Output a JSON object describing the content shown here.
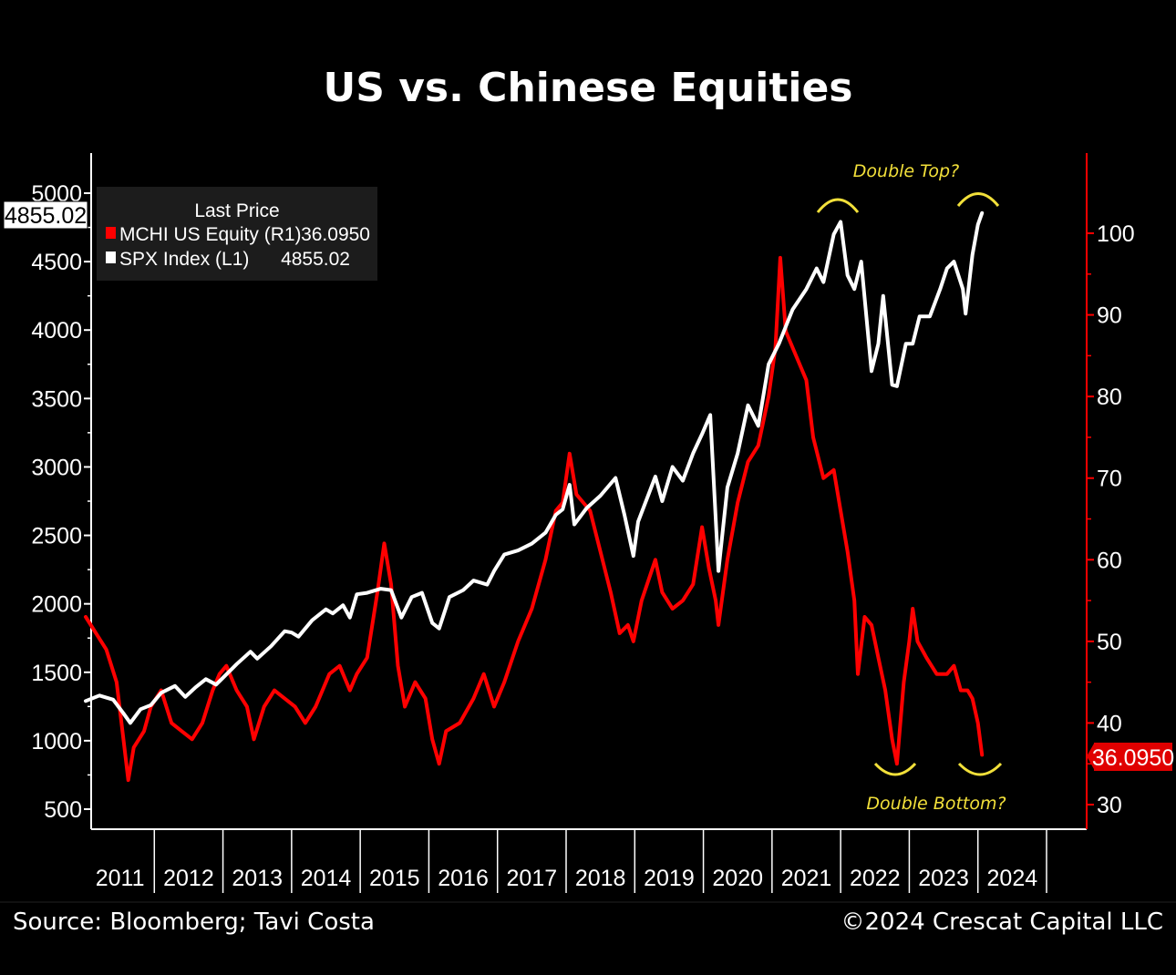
{
  "chart_data": {
    "type": "line",
    "title": "US vs. Chinese Equities",
    "legend": {
      "header": "Last Price",
      "placement": "top-left",
      "entries": [
        {
          "label": "MCHI US Equity  (R1)",
          "value": "36.0950",
          "color": "#ff0000"
        },
        {
          "label": "SPX Index  (L1)",
          "value": "4855.02",
          "color": "#ffffff"
        }
      ]
    },
    "left_axis": {
      "ticks": [
        "500",
        "1000",
        "1500",
        "2000",
        "2500",
        "3000",
        "3500",
        "4000",
        "4500",
        "5000"
      ],
      "range": [
        500,
        5000
      ],
      "last_value_label": "4855.02"
    },
    "right_axis": {
      "ticks": [
        "30",
        "40",
        "50",
        "60",
        "70",
        "80",
        "90",
        "100"
      ],
      "range": [
        30,
        100
      ],
      "last_value_label": "36.0950",
      "color": "#ff0000"
    },
    "x_axis": {
      "ticks": [
        "2011",
        "2012",
        "2013",
        "2014",
        "2015",
        "2016",
        "2017",
        "2018",
        "2019",
        "2020",
        "2021",
        "2022",
        "2023",
        "2024"
      ]
    },
    "series": [
      {
        "name": "SPX Index",
        "axis": "left",
        "color": "#ffffff",
        "points": [
          [
            2011.0,
            1290
          ],
          [
            2011.2,
            1330
          ],
          [
            2011.4,
            1300
          ],
          [
            2011.55,
            1200
          ],
          [
            2011.65,
            1130
          ],
          [
            2011.8,
            1230
          ],
          [
            2011.95,
            1260
          ],
          [
            2012.1,
            1350
          ],
          [
            2012.3,
            1400
          ],
          [
            2012.45,
            1320
          ],
          [
            2012.6,
            1390
          ],
          [
            2012.75,
            1450
          ],
          [
            2012.9,
            1410
          ],
          [
            2013.0,
            1460
          ],
          [
            2013.2,
            1560
          ],
          [
            2013.4,
            1650
          ],
          [
            2013.5,
            1600
          ],
          [
            2013.7,
            1690
          ],
          [
            2013.9,
            1800
          ],
          [
            2014.0,
            1790
          ],
          [
            2014.1,
            1760
          ],
          [
            2014.3,
            1880
          ],
          [
            2014.5,
            1960
          ],
          [
            2014.6,
            1930
          ],
          [
            2014.75,
            1990
          ],
          [
            2014.85,
            1900
          ],
          [
            2014.95,
            2070
          ],
          [
            2015.1,
            2080
          ],
          [
            2015.3,
            2110
          ],
          [
            2015.45,
            2100
          ],
          [
            2015.6,
            1900
          ],
          [
            2015.75,
            2050
          ],
          [
            2015.9,
            2080
          ],
          [
            2016.05,
            1860
          ],
          [
            2016.15,
            1820
          ],
          [
            2016.3,
            2050
          ],
          [
            2016.5,
            2100
          ],
          [
            2016.65,
            2170
          ],
          [
            2016.85,
            2140
          ],
          [
            2016.95,
            2240
          ],
          [
            2017.1,
            2360
          ],
          [
            2017.3,
            2390
          ],
          [
            2017.5,
            2440
          ],
          [
            2017.7,
            2520
          ],
          [
            2017.85,
            2650
          ],
          [
            2017.95,
            2690
          ],
          [
            2018.05,
            2870
          ],
          [
            2018.12,
            2580
          ],
          [
            2018.3,
            2700
          ],
          [
            2018.5,
            2790
          ],
          [
            2018.72,
            2920
          ],
          [
            2018.85,
            2650
          ],
          [
            2018.98,
            2350
          ],
          [
            2019.05,
            2600
          ],
          [
            2019.3,
            2930
          ],
          [
            2019.4,
            2750
          ],
          [
            2019.55,
            3000
          ],
          [
            2019.7,
            2900
          ],
          [
            2019.85,
            3100
          ],
          [
            2019.98,
            3240
          ],
          [
            2020.1,
            3380
          ],
          [
            2020.15,
            2900
          ],
          [
            2020.22,
            2240
          ],
          [
            2020.35,
            2850
          ],
          [
            2020.5,
            3100
          ],
          [
            2020.65,
            3450
          ],
          [
            2020.8,
            3300
          ],
          [
            2020.95,
            3750
          ],
          [
            2021.1,
            3900
          ],
          [
            2021.3,
            4150
          ],
          [
            2021.5,
            4300
          ],
          [
            2021.65,
            4450
          ],
          [
            2021.75,
            4350
          ],
          [
            2021.9,
            4700
          ],
          [
            2022.0,
            4790
          ],
          [
            2022.1,
            4400
          ],
          [
            2022.2,
            4300
          ],
          [
            2022.3,
            4500
          ],
          [
            2022.45,
            3700
          ],
          [
            2022.55,
            3900
          ],
          [
            2022.62,
            4250
          ],
          [
            2022.75,
            3600
          ],
          [
            2022.82,
            3590
          ],
          [
            2022.95,
            3900
          ],
          [
            2023.05,
            3900
          ],
          [
            2023.15,
            4100
          ],
          [
            2023.3,
            4100
          ],
          [
            2023.45,
            4300
          ],
          [
            2023.55,
            4450
          ],
          [
            2023.65,
            4500
          ],
          [
            2023.78,
            4300
          ],
          [
            2023.82,
            4120
          ],
          [
            2023.92,
            4550
          ],
          [
            2024.0,
            4770
          ],
          [
            2024.06,
            4855.02
          ]
        ]
      },
      {
        "name": "MCHI US Equity",
        "axis": "right",
        "color": "#ff0000",
        "points": [
          [
            2011.0,
            53
          ],
          [
            2011.15,
            51
          ],
          [
            2011.3,
            49
          ],
          [
            2011.45,
            45
          ],
          [
            2011.55,
            38
          ],
          [
            2011.62,
            33
          ],
          [
            2011.7,
            37
          ],
          [
            2011.85,
            39
          ],
          [
            2011.95,
            42
          ],
          [
            2012.1,
            44
          ],
          [
            2012.25,
            40
          ],
          [
            2012.4,
            39
          ],
          [
            2012.55,
            38
          ],
          [
            2012.7,
            40
          ],
          [
            2012.85,
            44
          ],
          [
            2012.95,
            46
          ],
          [
            2013.05,
            47
          ],
          [
            2013.2,
            44
          ],
          [
            2013.35,
            42
          ],
          [
            2013.45,
            38
          ],
          [
            2013.6,
            42
          ],
          [
            2013.75,
            44
          ],
          [
            2013.9,
            43
          ],
          [
            2014.05,
            42
          ],
          [
            2014.2,
            40
          ],
          [
            2014.35,
            42
          ],
          [
            2014.55,
            46
          ],
          [
            2014.7,
            47
          ],
          [
            2014.85,
            44
          ],
          [
            2014.95,
            46
          ],
          [
            2015.1,
            48
          ],
          [
            2015.25,
            56
          ],
          [
            2015.35,
            62
          ],
          [
            2015.45,
            57
          ],
          [
            2015.55,
            47
          ],
          [
            2015.65,
            42
          ],
          [
            2015.8,
            45
          ],
          [
            2015.95,
            43
          ],
          [
            2016.05,
            38
          ],
          [
            2016.15,
            35
          ],
          [
            2016.25,
            39
          ],
          [
            2016.45,
            40
          ],
          [
            2016.65,
            43
          ],
          [
            2016.8,
            46
          ],
          [
            2016.95,
            42
          ],
          [
            2017.1,
            45
          ],
          [
            2017.3,
            50
          ],
          [
            2017.5,
            54
          ],
          [
            2017.7,
            60
          ],
          [
            2017.85,
            66
          ],
          [
            2017.95,
            67
          ],
          [
            2018.05,
            73
          ],
          [
            2018.15,
            68
          ],
          [
            2018.35,
            66
          ],
          [
            2018.5,
            61
          ],
          [
            2018.65,
            56
          ],
          [
            2018.78,
            51
          ],
          [
            2018.9,
            52
          ],
          [
            2018.98,
            50
          ],
          [
            2019.1,
            55
          ],
          [
            2019.3,
            60
          ],
          [
            2019.4,
            56
          ],
          [
            2019.55,
            54
          ],
          [
            2019.7,
            55
          ],
          [
            2019.85,
            57
          ],
          [
            2019.98,
            64
          ],
          [
            2020.08,
            59
          ],
          [
            2020.18,
            55
          ],
          [
            2020.22,
            52
          ],
          [
            2020.35,
            60
          ],
          [
            2020.5,
            67
          ],
          [
            2020.65,
            72
          ],
          [
            2020.8,
            74
          ],
          [
            2020.95,
            80
          ],
          [
            2021.05,
            86
          ],
          [
            2021.12,
            97
          ],
          [
            2021.2,
            88
          ],
          [
            2021.35,
            85
          ],
          [
            2021.5,
            82
          ],
          [
            2021.6,
            75
          ],
          [
            2021.75,
            70
          ],
          [
            2021.9,
            71
          ],
          [
            2022.0,
            66
          ],
          [
            2022.1,
            61
          ],
          [
            2022.2,
            55
          ],
          [
            2022.25,
            46
          ],
          [
            2022.35,
            53
          ],
          [
            2022.45,
            52
          ],
          [
            2022.55,
            48
          ],
          [
            2022.65,
            44
          ],
          [
            2022.75,
            38
          ],
          [
            2022.82,
            35
          ],
          [
            2022.92,
            45
          ],
          [
            2023.0,
            50
          ],
          [
            2023.05,
            54
          ],
          [
            2023.12,
            50
          ],
          [
            2023.25,
            48
          ],
          [
            2023.4,
            46
          ],
          [
            2023.55,
            46
          ],
          [
            2023.65,
            47
          ],
          [
            2023.75,
            44
          ],
          [
            2023.85,
            44
          ],
          [
            2023.92,
            43
          ],
          [
            2024.0,
            40
          ],
          [
            2024.06,
            36.095
          ]
        ]
      }
    ],
    "annotations": [
      "Double Top?",
      "Double Bottom?"
    ]
  },
  "footer": {
    "source": "Source: Bloomberg; Tavi Costa",
    "copyright": "©2024 Crescat Capital LLC"
  }
}
